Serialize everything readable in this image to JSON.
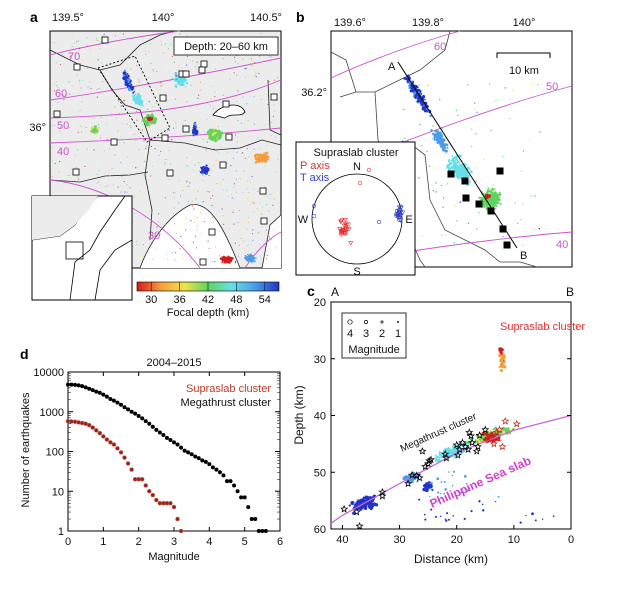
{
  "colors": {
    "contour": "#cc55cc",
    "supraslab": "#e03030",
    "megathrust": "#000000",
    "land": "#ececec",
    "slab_label": "#d040d0"
  },
  "panel_a": {
    "letter": "a",
    "lon_ticks": [
      "139.5°",
      "140°",
      "140.5°"
    ],
    "lat_ticks": [
      "36°"
    ],
    "depth_box": "Depth: 20–60 km",
    "contour_labels": [
      "70",
      "60",
      "50",
      "40",
      "30"
    ],
    "colorbar": {
      "ticks": [
        "30",
        "36",
        "42",
        "48",
        "54"
      ],
      "label": "Focal depth (km)",
      "range": [
        27,
        57
      ],
      "colors": [
        "#d7191c",
        "#f59d3d",
        "#f2e34c",
        "#5fd35f",
        "#66e0e8",
        "#4a9be8",
        "#2233c8"
      ]
    }
  },
  "panel_b": {
    "letter": "b",
    "lon_ticks": [
      "139.6°",
      "139.8°",
      "140°"
    ],
    "lat_ticks": [
      "36.2°"
    ],
    "scale_bar": "10 km",
    "profile_start": "A",
    "profile_end": "B",
    "contour_labels": [
      "60",
      "50",
      "40"
    ],
    "inset": {
      "title": "Supraslab cluster",
      "p_axis": "P axis",
      "t_axis": "T axis",
      "north": "N",
      "south": "S",
      "west": "W",
      "east": "E"
    }
  },
  "chart_data": [
    {
      "panel": "c",
      "type": "scatter",
      "xlabel": "Distance (km)",
      "ylabel": "Depth (km)",
      "xlim": [
        42,
        0
      ],
      "ylim": [
        60,
        20
      ],
      "xticks": [
        "40",
        "30",
        "20",
        "10",
        "0"
      ],
      "yticks": [
        "20",
        "30",
        "40",
        "50",
        "60"
      ],
      "end_labels": [
        "A",
        "B"
      ],
      "legend": {
        "sizes": [
          "4",
          "3",
          "2",
          "1"
        ],
        "title": "Magnitude",
        "placement": "top-left"
      },
      "annotations": [
        "Supraslab cluster",
        "Megathrust cluster",
        "Philippine Sea slab"
      ],
      "slab_surface": {
        "distance": [
          42,
          40,
          30,
          20,
          10,
          0
        ],
        "depth": [
          59,
          57.6,
          52,
          46.6,
          42.6,
          40
        ]
      },
      "megathrust_stars": [
        [
          39.7,
          56.5
        ],
        [
          37.5,
          57
        ],
        [
          37,
          59.5
        ],
        [
          33,
          53.5
        ],
        [
          33,
          54.2
        ],
        [
          28.5,
          52
        ],
        [
          27.8,
          50.5
        ],
        [
          27,
          50.6
        ],
        [
          26.5,
          51
        ],
        [
          26,
          46.3
        ],
        [
          25.5,
          49
        ],
        [
          25,
          48.5
        ],
        [
          24.8,
          48
        ],
        [
          24.5,
          47.8
        ],
        [
          22,
          46.8
        ],
        [
          21.8,
          47.5
        ],
        [
          20,
          45.2
        ],
        [
          19.8,
          47
        ],
        [
          19.5,
          46
        ],
        [
          19,
          44.8
        ],
        [
          18.5,
          45.5
        ],
        [
          18,
          46
        ],
        [
          17.8,
          43
        ],
        [
          17.5,
          43.6
        ],
        [
          17.3,
          44.8
        ],
        [
          16.5,
          46.3
        ],
        [
          16.3,
          45.5
        ],
        [
          16,
          43.5
        ],
        [
          15,
          42.5
        ]
      ],
      "supraslab_stars": [
        [
          14.5,
          44
        ],
        [
          13.5,
          45
        ],
        [
          14,
          43.5
        ],
        [
          13,
          43
        ],
        [
          12.5,
          42.5
        ],
        [
          12,
          45.5
        ],
        [
          11.5,
          41
        ],
        [
          9.5,
          41.5
        ]
      ]
    },
    {
      "panel": "d",
      "type": "scatter",
      "title": "2004–2015",
      "xlabel": "Magnitude",
      "ylabel": "Number of earthquakes",
      "xlim": [
        0,
        6
      ],
      "ylim": [
        1,
        10000
      ],
      "yscale": "log",
      "xticks": [
        "0",
        "1",
        "2",
        "3",
        "4",
        "5",
        "6"
      ],
      "yticks": [
        "1",
        "10",
        "100",
        "1000",
        "10000"
      ],
      "legend_placement": "top-right",
      "series": [
        {
          "name": "Supraslab cluster",
          "color": "#c0392b",
          "x": [
            0,
            0.1,
            0.2,
            0.3,
            0.4,
            0.5,
            0.6,
            0.7,
            0.8,
            0.9,
            1.0,
            1.1,
            1.2,
            1.3,
            1.4,
            1.5,
            1.6,
            1.7,
            1.8,
            1.9,
            2.0,
            2.1,
            2.2,
            2.3,
            2.4,
            2.5,
            2.6,
            2.7,
            2.8,
            2.9,
            3.0,
            3.1,
            3.2
          ],
          "y": [
            580,
            570,
            560,
            540,
            520,
            500,
            460,
            400,
            340,
            290,
            240,
            200,
            170,
            150,
            120,
            95,
            70,
            50,
            35,
            20,
            20,
            20,
            14,
            10,
            8,
            6,
            5,
            5,
            5,
            5,
            4,
            2,
            1
          ]
        },
        {
          "name": "Megathrust cluster",
          "color": "#000000",
          "x": [
            0,
            0.1,
            0.2,
            0.3,
            0.4,
            0.5,
            0.6,
            0.7,
            0.8,
            0.9,
            1.0,
            1.1,
            1.2,
            1.3,
            1.4,
            1.5,
            1.6,
            1.7,
            1.8,
            1.9,
            2.0,
            2.1,
            2.2,
            2.3,
            2.4,
            2.5,
            2.6,
            2.7,
            2.8,
            2.9,
            3.0,
            3.1,
            3.2,
            3.3,
            3.4,
            3.5,
            3.6,
            3.7,
            3.8,
            3.9,
            4.0,
            4.1,
            4.2,
            4.3,
            4.4,
            4.5,
            4.6,
            4.7,
            4.8,
            4.9,
            5.0,
            5.1,
            5.2,
            5.3,
            5.4,
            5.5,
            5.6
          ],
          "y": [
            4800,
            4800,
            4750,
            4600,
            4400,
            4100,
            3800,
            3500,
            3200,
            3000,
            2700,
            2400,
            2100,
            1900,
            1700,
            1500,
            1300,
            1150,
            1000,
            900,
            780,
            680,
            580,
            500,
            420,
            350,
            300,
            260,
            220,
            195,
            170,
            150,
            125,
            105,
            95,
            85,
            75,
            68,
            60,
            55,
            48,
            40,
            35,
            30,
            25,
            18,
            18,
            14,
            10,
            7,
            7,
            4,
            2,
            2,
            1,
            1,
            1
          ]
        }
      ]
    }
  ]
}
